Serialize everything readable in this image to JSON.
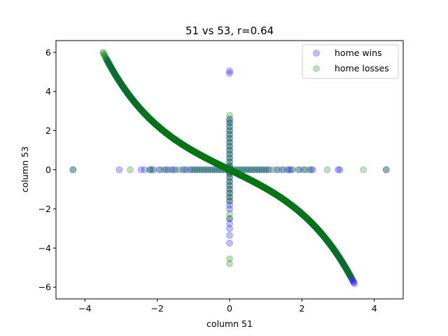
{
  "chart_data": {
    "type": "scatter",
    "title": "51 vs 53, r=0.64",
    "xlabel": "column 51",
    "ylabel": "column 53",
    "xlim": [
      -4.8,
      4.8
    ],
    "ylim": [
      -6.6,
      6.6
    ],
    "xticks": [
      -4,
      -2,
      0,
      2,
      4
    ],
    "yticks": [
      -6,
      -4,
      -2,
      0,
      2,
      4,
      6
    ],
    "grid": false,
    "legend_position": "top-right",
    "marker_alpha": 0.25,
    "series": [
      {
        "name": "home wins",
        "color": "#0000ff",
        "curve_x_range": [
          -3.4,
          3.45
        ],
        "vertical_y": [
          5.05,
          4.93,
          2.55,
          2.4,
          2.2,
          2.0,
          1.8,
          1.6,
          1.4,
          1.2,
          1.0,
          0.8,
          0.6,
          0.4,
          0.2,
          0.1,
          -0.1,
          -0.2,
          -0.4,
          -0.6,
          -0.8,
          -1.0,
          -1.2,
          -1.4,
          -1.6,
          -1.8,
          -2.0,
          -2.5,
          -2.75,
          -3.0,
          -3.35,
          -3.75
        ],
        "horizontal_x": [
          -4.33,
          -3.05,
          -2.45,
          -2.35,
          -2.2,
          -2.1,
          -1.95,
          -1.8,
          -1.7,
          -1.6,
          -1.5,
          -1.3,
          -1.2,
          -1.1,
          -1.0,
          -0.9,
          -0.8,
          -0.7,
          -0.6,
          -0.5,
          -0.4,
          -0.3,
          -0.2,
          -0.1,
          0.1,
          0.2,
          0.3,
          0.4,
          0.5,
          0.6,
          0.7,
          0.8,
          0.9,
          1.0,
          1.1,
          1.3,
          1.45,
          1.6,
          1.65,
          1.7,
          1.9,
          2.05,
          2.25,
          2.3,
          3.0,
          3.05,
          4.33
        ]
      },
      {
        "name": "home losses",
        "color": "#008000",
        "curve_x_range": [
          -3.5,
          3.35
        ],
        "vertical_y": [
          2.78,
          2.6,
          2.4,
          2.2,
          2.0,
          1.8,
          1.6,
          1.4,
          1.2,
          1.0,
          0.8,
          0.6,
          0.4,
          0.2,
          0.1,
          -0.1,
          -0.2,
          -0.4,
          -0.6,
          -0.8,
          -1.0,
          -1.2,
          -1.4,
          -1.6,
          -2.25,
          -2.5,
          -4.55,
          -4.8
        ],
        "horizontal_x": [
          -4.33,
          -2.75,
          -2.2,
          -2.15,
          -1.9,
          -1.75,
          -1.55,
          -1.4,
          -1.25,
          -1.05,
          -0.95,
          -0.85,
          -0.75,
          -0.65,
          -0.55,
          -0.45,
          -0.35,
          -0.25,
          -0.15,
          0.15,
          0.25,
          0.35,
          0.45,
          0.55,
          0.65,
          0.75,
          0.85,
          0.95,
          1.05,
          1.2,
          1.35,
          1.5,
          1.75,
          1.95,
          2.1,
          2.2,
          2.7,
          3.7,
          4.33
        ]
      }
    ]
  }
}
